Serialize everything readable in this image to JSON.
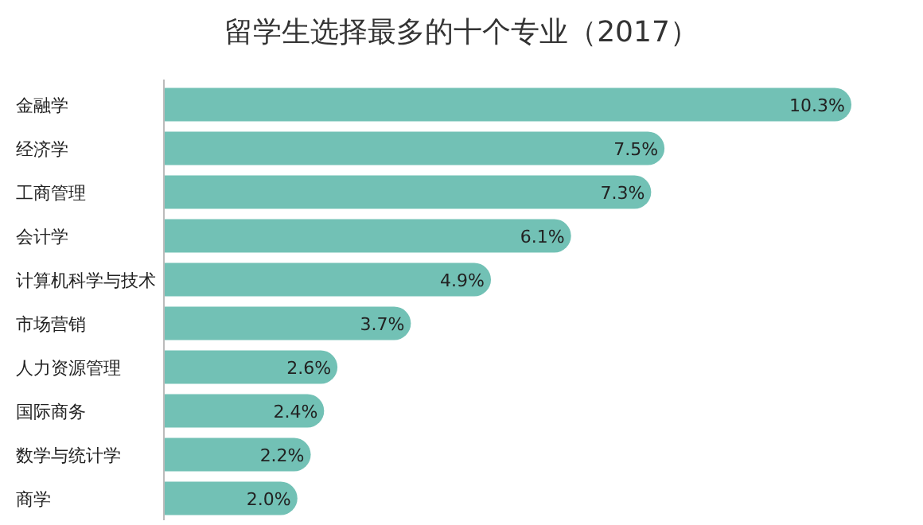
{
  "chart_data": {
    "type": "bar",
    "orientation": "horizontal",
    "title": "留学生选择最多的十个专业（2017）",
    "categories": [
      "金融学",
      "经济学",
      "工商管理",
      "会计学",
      "计算机科学与技术",
      "市场营销",
      "人力资源管理",
      "国际商务",
      "数学与统计学",
      "商学"
    ],
    "values": [
      10.3,
      7.5,
      7.3,
      6.1,
      4.9,
      3.7,
      2.6,
      2.4,
      2.2,
      2.0
    ],
    "value_labels": [
      "10.3%",
      "7.5%",
      "7.3%",
      "6.1%",
      "4.9%",
      "3.7%",
      "2.6%",
      "2.4%",
      "2.2%",
      "2.0%"
    ],
    "color": "#72c1b5"
  }
}
